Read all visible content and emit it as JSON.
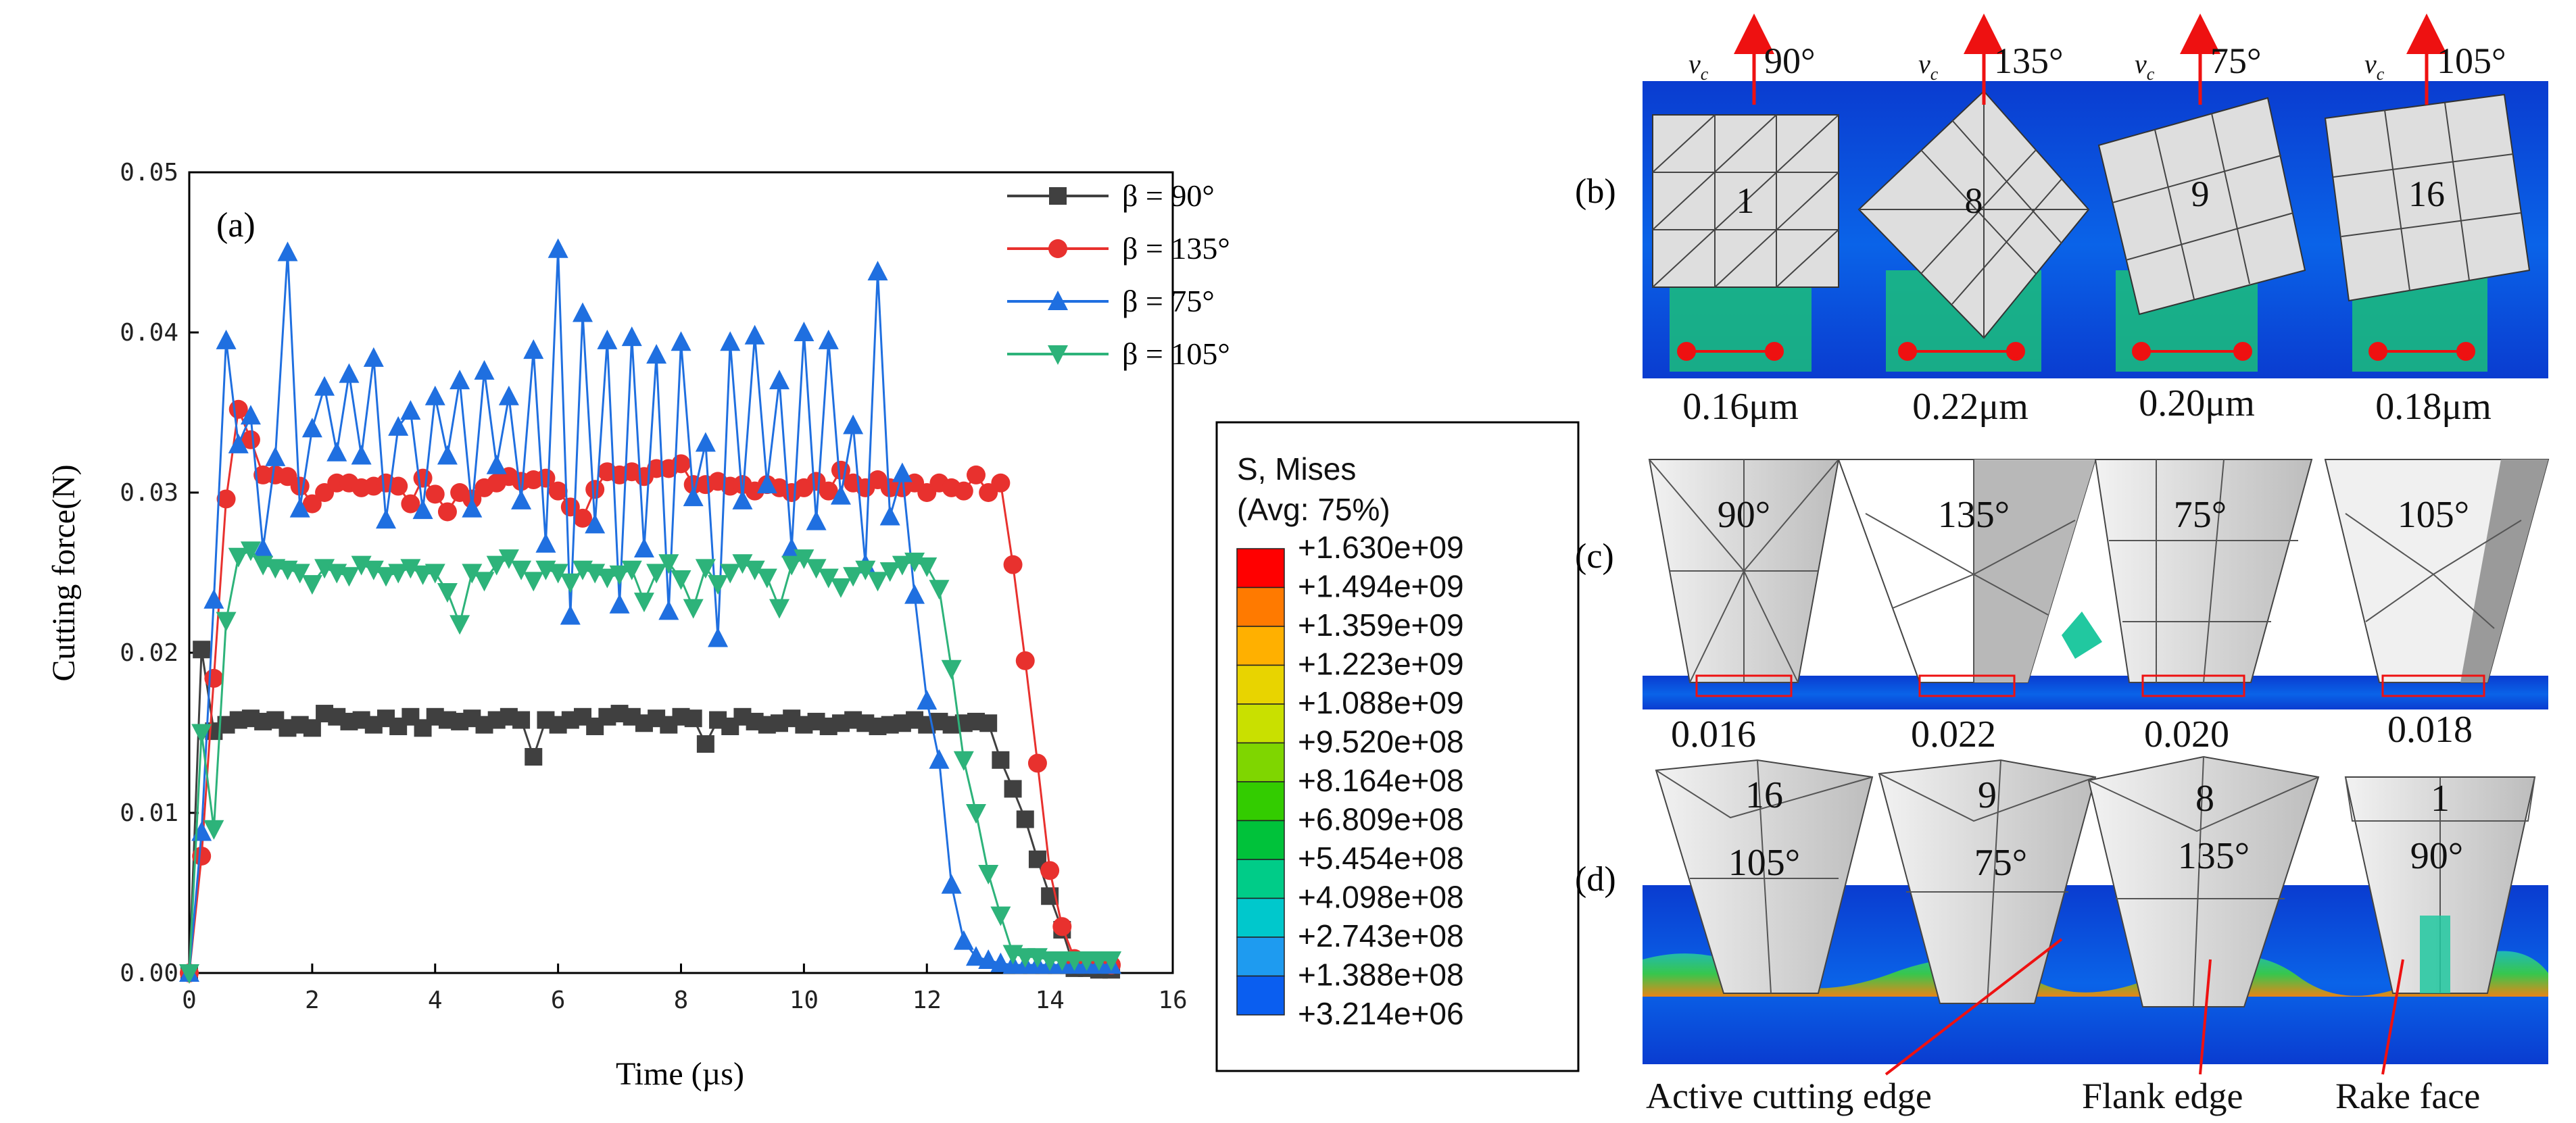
{
  "chart_data": {
    "type": "line",
    "panel_label": "(a)",
    "xlabel": "Time (µs)",
    "ylabel": "Cutting force(N)",
    "xlim": [
      0,
      16
    ],
    "ylim": [
      0,
      0.05
    ],
    "x_ticks": [
      "0",
      "2",
      "4",
      "6",
      "8",
      "10",
      "12",
      "14",
      "16"
    ],
    "y_ticks": [
      "0.00",
      "0.01",
      "0.02",
      "0.03",
      "0.04",
      "0.05"
    ],
    "series": [
      {
        "name": "β = 90°",
        "color": "#404040",
        "marker": "square",
        "x": [
          0,
          0.2,
          0.4,
          0.6,
          0.8,
          1.0,
          1.2,
          1.4,
          1.6,
          1.8,
          2.0,
          2.2,
          2.4,
          2.6,
          2.8,
          3.0,
          3.2,
          3.4,
          3.6,
          3.8,
          4.0,
          4.2,
          4.4,
          4.6,
          4.8,
          5.0,
          5.2,
          5.4,
          5.6,
          5.8,
          6.0,
          6.2,
          6.4,
          6.6,
          6.8,
          7.0,
          7.2,
          7.4,
          7.6,
          7.8,
          8.0,
          8.2,
          8.4,
          8.6,
          8.8,
          9.0,
          9.2,
          9.4,
          9.6,
          9.8,
          10.0,
          10.2,
          10.4,
          10.6,
          10.8,
          11.0,
          11.2,
          11.4,
          11.6,
          11.8,
          12.0,
          12.2,
          12.4,
          12.6,
          12.8,
          13.0,
          13.2,
          13.4,
          13.6,
          13.8,
          14.0,
          14.2,
          14.4,
          14.6,
          14.8,
          15.0
        ],
        "y": [
          0,
          0.0202,
          0.0151,
          0.0155,
          0.0158,
          0.0159,
          0.0157,
          0.0158,
          0.0153,
          0.0155,
          0.0153,
          0.0162,
          0.016,
          0.0157,
          0.0158,
          0.0155,
          0.0159,
          0.0154,
          0.016,
          0.0153,
          0.016,
          0.0158,
          0.0157,
          0.0159,
          0.0155,
          0.0158,
          0.016,
          0.0158,
          0.0135,
          0.0158,
          0.0155,
          0.0158,
          0.016,
          0.0154,
          0.016,
          0.0162,
          0.016,
          0.0156,
          0.0159,
          0.0155,
          0.016,
          0.0159,
          0.0143,
          0.0158,
          0.0154,
          0.016,
          0.0157,
          0.0155,
          0.0156,
          0.0159,
          0.0155,
          0.0157,
          0.0154,
          0.0156,
          0.0158,
          0.0156,
          0.0154,
          0.0155,
          0.0156,
          0.0158,
          0.0155,
          0.0157,
          0.0155,
          0.0156,
          0.0157,
          0.0156,
          0.0133,
          0.0115,
          0.0096,
          0.0071,
          0.0048,
          0.0027,
          0.0003,
          0.0003,
          0.0002,
          0.0002
        ]
      },
      {
        "name": "β = 135°",
        "color": "#e8312e",
        "marker": "circle",
        "x": [
          0,
          0.2,
          0.4,
          0.6,
          0.8,
          1.0,
          1.2,
          1.4,
          1.6,
          1.8,
          2.0,
          2.2,
          2.4,
          2.6,
          2.8,
          3.0,
          3.2,
          3.4,
          3.6,
          3.8,
          4.0,
          4.2,
          4.4,
          4.6,
          4.8,
          5.0,
          5.2,
          5.4,
          5.6,
          5.8,
          6.0,
          6.2,
          6.4,
          6.6,
          6.8,
          7.0,
          7.2,
          7.4,
          7.6,
          7.8,
          8.0,
          8.2,
          8.4,
          8.6,
          8.8,
          9.0,
          9.2,
          9.4,
          9.6,
          9.8,
          10.0,
          10.2,
          10.4,
          10.6,
          10.8,
          11.0,
          11.2,
          11.4,
          11.6,
          11.8,
          12.0,
          12.2,
          12.4,
          12.6,
          12.8,
          13.0,
          13.2,
          13.4,
          13.6,
          13.8,
          14.0,
          14.2,
          14.4,
          14.6,
          14.8,
          15.0
        ],
        "y": [
          0,
          0.0073,
          0.0184,
          0.0296,
          0.0352,
          0.0333,
          0.0311,
          0.0311,
          0.031,
          0.0304,
          0.0293,
          0.03,
          0.0306,
          0.0306,
          0.0303,
          0.0304,
          0.0306,
          0.0304,
          0.0293,
          0.0309,
          0.0299,
          0.0288,
          0.03,
          0.0296,
          0.0303,
          0.0306,
          0.031,
          0.0307,
          0.0308,
          0.0309,
          0.0301,
          0.0291,
          0.0284,
          0.0302,
          0.0313,
          0.0311,
          0.0313,
          0.031,
          0.0315,
          0.0315,
          0.0318,
          0.0305,
          0.0305,
          0.0307,
          0.0304,
          0.0305,
          0.0301,
          0.0305,
          0.0303,
          0.03,
          0.0303,
          0.0307,
          0.0301,
          0.0314,
          0.0306,
          0.0303,
          0.0308,
          0.0303,
          0.0303,
          0.0306,
          0.03,
          0.0306,
          0.0303,
          0.0301,
          0.0311,
          0.03,
          0.0306,
          0.0255,
          0.0195,
          0.0131,
          0.0064,
          0.0029,
          0.0009,
          0.0007,
          0.0006,
          0.0005
        ]
      },
      {
        "name": "β = 75°",
        "color": "#1f6fe0",
        "marker": "triangle-up",
        "x": [
          0,
          0.2,
          0.4,
          0.6,
          0.8,
          1.0,
          1.2,
          1.4,
          1.6,
          1.8,
          2.0,
          2.2,
          2.4,
          2.6,
          2.8,
          3.0,
          3.2,
          3.4,
          3.6,
          3.8,
          4.0,
          4.2,
          4.4,
          4.6,
          4.8,
          5.0,
          5.2,
          5.4,
          5.6,
          5.8,
          6.0,
          6.2,
          6.4,
          6.6,
          6.8,
          7.0,
          7.2,
          7.4,
          7.6,
          7.8,
          8.0,
          8.2,
          8.4,
          8.6,
          8.8,
          9.0,
          9.2,
          9.4,
          9.6,
          9.8,
          10.0,
          10.2,
          10.4,
          10.6,
          10.8,
          11.0,
          11.2,
          11.4,
          11.6,
          11.8,
          12.0,
          12.2,
          12.4,
          12.6,
          12.8,
          13.0,
          13.2,
          13.4,
          13.6,
          13.8,
          14.0,
          14.2,
          14.4,
          14.6,
          14.8,
          15.0
        ],
        "y": [
          0,
          0.0088,
          0.0233,
          0.0395,
          0.033,
          0.0348,
          0.0265,
          0.0322,
          0.045,
          0.029,
          0.034,
          0.0366,
          0.0325,
          0.0374,
          0.0323,
          0.0384,
          0.0283,
          0.0341,
          0.0351,
          0.0289,
          0.036,
          0.0323,
          0.037,
          0.029,
          0.0376,
          0.0317,
          0.036,
          0.0295,
          0.0389,
          0.0268,
          0.0452,
          0.0223,
          0.0412,
          0.028,
          0.0395,
          0.023,
          0.0397,
          0.0265,
          0.0386,
          0.0226,
          0.0394,
          0.0297,
          0.0331,
          0.0209,
          0.0394,
          0.0295,
          0.0398,
          0.0305,
          0.037,
          0.0265,
          0.04,
          0.0282,
          0.0395,
          0.0298,
          0.0342,
          0.0255,
          0.0438,
          0.0285,
          0.0312,
          0.0236,
          0.017,
          0.0133,
          0.0055,
          0.002,
          0.001,
          0.0008,
          0.0006,
          0.0005,
          0.0005,
          0.0005,
          0.0005,
          0.0005,
          0.0005,
          0.0005,
          0.0005,
          0.0005
        ]
      },
      {
        "name": "β = 105°",
        "color": "#2db37a",
        "marker": "triangle-down",
        "x": [
          0,
          0.2,
          0.4,
          0.6,
          0.8,
          1.0,
          1.2,
          1.4,
          1.6,
          1.8,
          2.0,
          2.2,
          2.4,
          2.6,
          2.8,
          3.0,
          3.2,
          3.4,
          3.6,
          3.8,
          4.0,
          4.2,
          4.4,
          4.6,
          4.8,
          5.0,
          5.2,
          5.4,
          5.6,
          5.8,
          6.0,
          6.2,
          6.4,
          6.6,
          6.8,
          7.0,
          7.2,
          7.4,
          7.6,
          7.8,
          8.0,
          8.2,
          8.4,
          8.6,
          8.8,
          9.0,
          9.2,
          9.4,
          9.6,
          9.8,
          10.0,
          10.2,
          10.4,
          10.6,
          10.8,
          11.0,
          11.2,
          11.4,
          11.6,
          11.8,
          12.0,
          12.2,
          12.4,
          12.6,
          12.8,
          13.0,
          13.2,
          13.4,
          13.6,
          13.8,
          14.0,
          14.2,
          14.4,
          14.6,
          14.8,
          15.0
        ],
        "y": [
          0,
          0.015,
          0.009,
          0.022,
          0.026,
          0.0264,
          0.0255,
          0.0253,
          0.0252,
          0.025,
          0.0243,
          0.0253,
          0.025,
          0.0248,
          0.0255,
          0.0252,
          0.0248,
          0.025,
          0.0253,
          0.0249,
          0.025,
          0.0238,
          0.0218,
          0.025,
          0.0245,
          0.0255,
          0.0259,
          0.0252,
          0.0245,
          0.0252,
          0.025,
          0.0244,
          0.0252,
          0.025,
          0.0247,
          0.0249,
          0.0252,
          0.0232,
          0.025,
          0.0256,
          0.0246,
          0.0228,
          0.0253,
          0.0243,
          0.025,
          0.0256,
          0.0252,
          0.0247,
          0.0228,
          0.0255,
          0.0259,
          0.0253,
          0.0247,
          0.0241,
          0.0248,
          0.0252,
          0.0245,
          0.0251,
          0.0255,
          0.0257,
          0.0254,
          0.024,
          0.019,
          0.0133,
          0.01,
          0.0062,
          0.0036,
          0.0012,
          0.001,
          0.001,
          0.0008,
          0.0008,
          0.0008,
          0.0008,
          0.0008,
          0.0008
        ]
      }
    ]
  },
  "colorbar": {
    "title_line1": "S, Mises",
    "title_line2": "(Avg: 75%)",
    "values": [
      "+1.630e+09",
      "+1.494e+09",
      "+1.359e+09",
      "+1.223e+09",
      "+1.088e+09",
      "+9.520e+08",
      "+8.164e+08",
      "+6.809e+08",
      "+5.454e+08",
      "+4.098e+08",
      "+2.743e+08",
      "+1.388e+08",
      "+3.214e+06"
    ],
    "colors": [
      "#ff0000",
      "#ff7a00",
      "#ffb000",
      "#e8d400",
      "#c9e000",
      "#7fd600",
      "#33cc00",
      "#00c23a",
      "#00cc88",
      "#00c8cc",
      "#1e9bf0",
      "#0a5ef0",
      "#0000ff"
    ]
  },
  "panel_b": {
    "label": "(b)",
    "velocity_label": "v",
    "velocity_sub": "c",
    "tools": [
      {
        "angle": "90°",
        "id": "1",
        "width": "0.16μm"
      },
      {
        "angle": "135°",
        "id": "8",
        "width": "0.22μm"
      },
      {
        "angle": "75°",
        "id": "9",
        "width": "0.20μm"
      },
      {
        "angle": "105°",
        "id": "16",
        "width": "0.18μm"
      }
    ]
  },
  "panel_c": {
    "label": "(c)",
    "tools": [
      {
        "angle": "90°",
        "value": "0.016"
      },
      {
        "angle": "135°",
        "value": "0.022"
      },
      {
        "angle": "75°",
        "value": "0.020"
      },
      {
        "angle": "105°",
        "value": "0.018"
      }
    ]
  },
  "panel_d": {
    "label": "(d)",
    "tools": [
      {
        "id": "16",
        "angle": "105°"
      },
      {
        "id": "9",
        "angle": "75°"
      },
      {
        "id": "8",
        "angle": "135°"
      },
      {
        "id": "1",
        "angle": "90°"
      }
    ],
    "annotations": [
      "Active cutting edge",
      "Flank edge",
      "Rake face"
    ]
  }
}
